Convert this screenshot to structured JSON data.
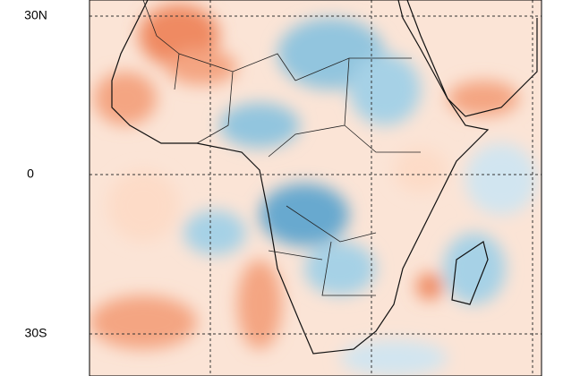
{
  "map": {
    "lat_labels": [
      "30N",
      "0",
      "30S"
    ]
  }
}
